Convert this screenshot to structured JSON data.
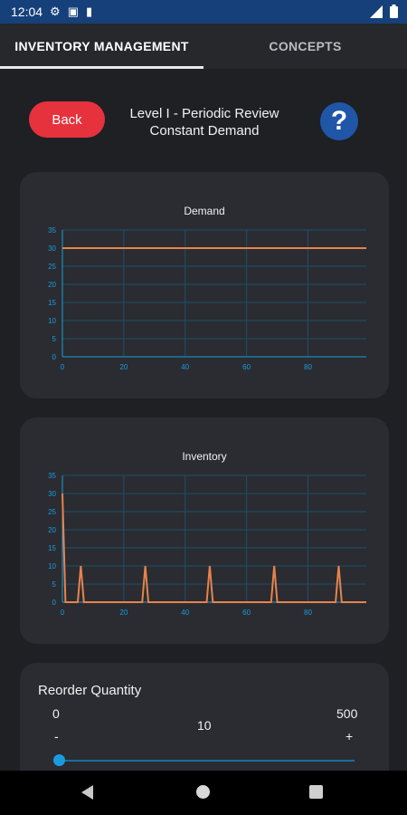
{
  "status_bar": {
    "time": "12:04"
  },
  "tabs": [
    {
      "label": "INVENTORY MANAGEMENT"
    },
    {
      "label": "CONCEPTS"
    }
  ],
  "header": {
    "back_label": "Back",
    "title_line1": "Level I - Periodic Review",
    "title_line2": "Constant Demand",
    "help_label": "?"
  },
  "colors": {
    "accent_red": "#e5323d",
    "help_blue": "#1f56a7",
    "series_orange": "#e8834c",
    "axis_blue": "#1a9be0"
  },
  "chart_data": [
    {
      "type": "line",
      "title": "Demand",
      "xlabel": "",
      "ylabel": "",
      "xlim": [
        0,
        99
      ],
      "ylim": [
        0,
        35
      ],
      "xticks": [
        0,
        20,
        40,
        60,
        80
      ],
      "yticks": [
        0,
        5,
        10,
        15,
        20,
        25,
        30,
        35
      ],
      "grid": true,
      "series": [
        {
          "x": [
            0,
            99
          ],
          "y": [
            30,
            30
          ]
        }
      ]
    },
    {
      "type": "line",
      "title": "Inventory",
      "xlabel": "",
      "ylabel": "",
      "xlim": [
        0,
        99
      ],
      "ylim": [
        0,
        35
      ],
      "xticks": [
        0,
        20,
        40,
        60,
        80
      ],
      "yticks": [
        0,
        5,
        10,
        15,
        20,
        25,
        30,
        35
      ],
      "grid": true,
      "series": [
        {
          "x": [
            0,
            1,
            5,
            6,
            7,
            26,
            27,
            28,
            47,
            48,
            49,
            68,
            69,
            70,
            89,
            90,
            91,
            99
          ],
          "y": [
            30,
            0,
            0,
            10,
            0,
            0,
            10,
            0,
            0,
            10,
            0,
            0,
            10,
            0,
            0,
            10,
            0,
            0
          ]
        }
      ]
    }
  ],
  "reorder": {
    "label": "Reorder Quantity",
    "min": "0",
    "max": "500",
    "value": "10",
    "minus": "-",
    "plus": "+",
    "slider_fraction": 0.02
  },
  "nav": {
    "back_icon": "triangle-back-icon",
    "home_icon": "circle-home-icon",
    "recent_icon": "square-recents-icon"
  }
}
